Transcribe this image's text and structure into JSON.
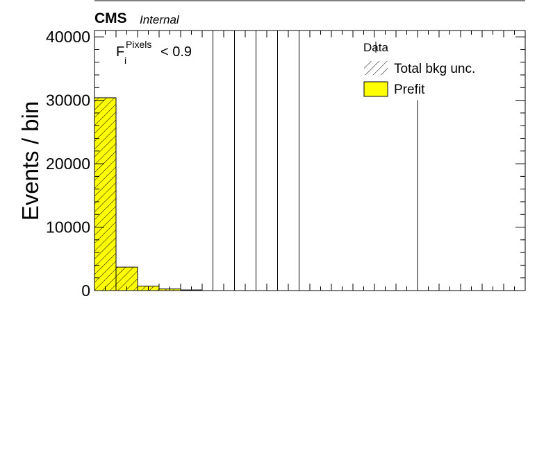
{
  "header": {
    "experiment": "CMS",
    "status": "Internal"
  },
  "selection_label": {
    "base": "F",
    "subscript": "i",
    "superscript": "Pixels",
    "cut": "< 0.9"
  },
  "colors": {
    "prefit_fill": "#ffff00",
    "outline": "#000000"
  },
  "chart_data": {
    "type": "bar",
    "title": "",
    "xlabel": "",
    "ylabel": "Events / bin",
    "ylim": [
      0,
      41000
    ],
    "x_bins": 20,
    "y_ticks": [
      0,
      10000,
      20000,
      30000,
      40000
    ],
    "y_tick_labels": [
      "0",
      "10000",
      "20000",
      "30000",
      "40000"
    ],
    "series": [
      {
        "name": "Prefit",
        "values": [
          30400,
          3700,
          700,
          250,
          100,
          0,
          0,
          0,
          0,
          0,
          0,
          0,
          0,
          0,
          0,
          0,
          0,
          0,
          0,
          0
        ]
      }
    ],
    "data_error_bars": [
      {
        "bin": 5.5,
        "value": 0,
        "upper": 41000
      },
      {
        "bin": 6.5,
        "value": 0,
        "upper": 41000
      },
      {
        "bin": 7.5,
        "value": 0,
        "upper": 41000
      },
      {
        "bin": 8.5,
        "value": 0,
        "upper": 41000
      },
      {
        "bin": 9.5,
        "value": 0,
        "upper": 41000
      },
      {
        "bin": 15.0,
        "value": 0,
        "upper": 30000
      }
    ],
    "legend": {
      "placement": "top-right",
      "entries": [
        "Data",
        "Total bkg unc.",
        "Prefit"
      ]
    }
  }
}
